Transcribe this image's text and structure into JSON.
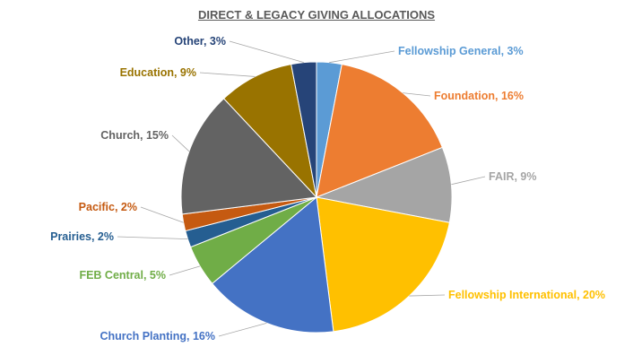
{
  "chart_data": {
    "type": "pie",
    "title": "DIRECT & LEGACY GIVING ALLOCATIONS",
    "slices": [
      {
        "label": "Fellowship General, 3%",
        "name": "Fellowship General",
        "value": 3,
        "color": "#5B9BD5"
      },
      {
        "label": "Foundation, 16%",
        "name": "Foundation",
        "value": 16,
        "color": "#ED7D31"
      },
      {
        "label": "FAIR, 9%",
        "name": "FAIR",
        "value": 9,
        "color": "#A5A5A5"
      },
      {
        "label": "Fellowship International, 20%",
        "name": "Fellowship International",
        "value": 20,
        "color": "#FFC000"
      },
      {
        "label": "Church Planting, 16%",
        "name": "Church Planting",
        "value": 16,
        "color": "#4472C4"
      },
      {
        "label": "FEB Central, 5%",
        "name": "FEB Central",
        "value": 5,
        "color": "#70AD47"
      },
      {
        "label": "Prairies, 2%",
        "name": "Prairies",
        "value": 2,
        "color": "#255E91"
      },
      {
        "label": "Pacific, 2%",
        "name": "Pacific",
        "value": 2,
        "color": "#C55A11"
      },
      {
        "label": "Church, 15%",
        "name": "Church",
        "value": 15,
        "color": "#636363"
      },
      {
        "label": "Education, 9%",
        "name": "Education",
        "value": 9,
        "color": "#997300"
      },
      {
        "label": "Other, 3%",
        "name": "Other",
        "value": 3,
        "color": "#264478"
      }
    ],
    "legend": "none"
  }
}
